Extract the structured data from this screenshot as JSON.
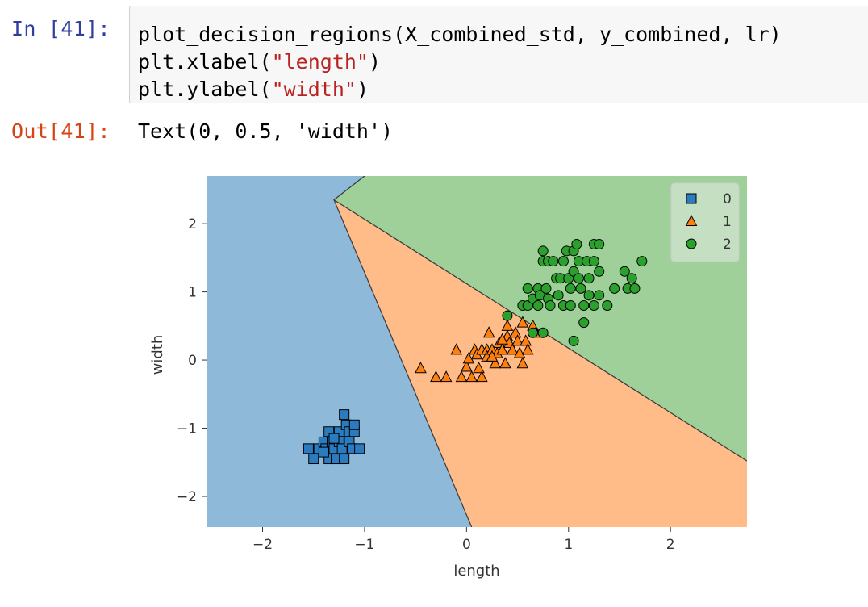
{
  "cell": {
    "in_prompt": "In [41]:",
    "out_prompt": "Out[41]:",
    "code": [
      {
        "pre": "plot_decision_regions(X_combined_std, y_combined, lr)",
        "str": "",
        "post": ""
      },
      {
        "pre": "plt.xlabel(",
        "str": "\"length\"",
        "post": ")"
      },
      {
        "pre": "plt.ylabel(",
        "str": "\"width\"",
        "post": ")"
      }
    ],
    "output_text": "Text(0, 0.5, 'width')"
  },
  "chart_data": {
    "type": "scatter",
    "title": "",
    "xlabel": "length",
    "ylabel": "width",
    "xlim": [
      -2.55,
      2.75
    ],
    "ylim": [
      -2.45,
      2.7
    ],
    "xticks": [
      -2,
      -1,
      0,
      1,
      2
    ],
    "xtick_labels": [
      "−2",
      "−1",
      "0",
      "1",
      "2"
    ],
    "yticks": [
      -2,
      -1,
      0,
      1,
      2
    ],
    "ytick_labels": [
      "−2",
      "−1",
      "0",
      "1",
      "2"
    ],
    "grid": false,
    "legend_position": "top-right",
    "decision_boundaries": {
      "boundary_0_1": [
        [
          -1.0,
          2.7
        ],
        [
          -1.3,
          2.35
        ],
        [
          0.05,
          -2.45
        ]
      ],
      "boundary_1_2": [
        [
          -1.3,
          2.35
        ],
        [
          2.75,
          -1.48
        ]
      ]
    },
    "region_colors": {
      "0": "#8fb9d9",
      "1": "#ffbb88",
      "2": "#9fd09a"
    },
    "series": [
      {
        "name": "0",
        "marker": "square",
        "color": "#2a7bbf",
        "points": [
          [
            -1.55,
            -1.3
          ],
          [
            -1.5,
            -1.45
          ],
          [
            -1.45,
            -1.3
          ],
          [
            -1.4,
            -1.2
          ],
          [
            -1.38,
            -1.3
          ],
          [
            -1.35,
            -1.05
          ],
          [
            -1.35,
            -1.45
          ],
          [
            -1.32,
            -1.2
          ],
          [
            -1.3,
            -1.3
          ],
          [
            -1.28,
            -1.45
          ],
          [
            -1.25,
            -1.05
          ],
          [
            -1.25,
            -1.2
          ],
          [
            -1.22,
            -1.3
          ],
          [
            -1.2,
            -1.45
          ],
          [
            -1.2,
            -0.8
          ],
          [
            -1.18,
            -0.95
          ],
          [
            -1.15,
            -1.05
          ],
          [
            -1.15,
            -1.2
          ],
          [
            -1.12,
            -1.3
          ],
          [
            -1.1,
            -1.05
          ],
          [
            -1.1,
            -0.95
          ],
          [
            -1.05,
            -1.3
          ],
          [
            -1.3,
            -1.15
          ],
          [
            -1.4,
            -1.35
          ]
        ]
      },
      {
        "name": "1",
        "marker": "triangle",
        "color": "#ff7f0e",
        "points": [
          [
            -0.45,
            -0.12
          ],
          [
            -0.3,
            -0.25
          ],
          [
            -0.2,
            -0.25
          ],
          [
            -0.1,
            0.15
          ],
          [
            -0.05,
            -0.25
          ],
          [
            0.0,
            -0.1
          ],
          [
            0.02,
            0.02
          ],
          [
            0.05,
            -0.25
          ],
          [
            0.08,
            0.15
          ],
          [
            0.1,
            0.08
          ],
          [
            0.12,
            -0.12
          ],
          [
            0.15,
            -0.25
          ],
          [
            0.15,
            0.15
          ],
          [
            0.2,
            0.15
          ],
          [
            0.2,
            0.05
          ],
          [
            0.22,
            0.4
          ],
          [
            0.25,
            0.15
          ],
          [
            0.28,
            -0.05
          ],
          [
            0.3,
            0.1
          ],
          [
            0.32,
            0.25
          ],
          [
            0.35,
            0.15
          ],
          [
            0.38,
            -0.05
          ],
          [
            0.4,
            0.5
          ],
          [
            0.4,
            0.35
          ],
          [
            0.42,
            0.25
          ],
          [
            0.45,
            0.15
          ],
          [
            0.48,
            0.4
          ],
          [
            0.5,
            0.28
          ],
          [
            0.52,
            0.1
          ],
          [
            0.55,
            -0.05
          ],
          [
            0.55,
            0.55
          ],
          [
            0.58,
            0.28
          ],
          [
            0.6,
            0.15
          ],
          [
            0.65,
            0.5
          ],
          [
            0.68,
            0.4
          ],
          [
            0.35,
            0.3
          ],
          [
            0.25,
            0.05
          ]
        ]
      },
      {
        "name": "2",
        "marker": "circle",
        "color": "#2ca02c",
        "points": [
          [
            0.4,
            0.65
          ],
          [
            0.55,
            0.8
          ],
          [
            0.6,
            0.8
          ],
          [
            0.6,
            1.05
          ],
          [
            0.65,
            0.9
          ],
          [
            0.65,
            0.4
          ],
          [
            0.7,
            1.05
          ],
          [
            0.7,
            0.8
          ],
          [
            0.72,
            0.95
          ],
          [
            0.75,
            1.6
          ],
          [
            0.75,
            1.45
          ],
          [
            0.75,
            0.4
          ],
          [
            0.78,
            1.05
          ],
          [
            0.8,
            0.9
          ],
          [
            0.8,
            1.45
          ],
          [
            0.82,
            0.8
          ],
          [
            0.85,
            1.45
          ],
          [
            0.88,
            1.2
          ],
          [
            0.9,
            0.95
          ],
          [
            0.92,
            1.2
          ],
          [
            0.95,
            0.8
          ],
          [
            0.95,
            1.45
          ],
          [
            0.98,
            1.6
          ],
          [
            1.0,
            1.2
          ],
          [
            1.02,
            0.8
          ],
          [
            1.02,
            1.05
          ],
          [
            1.05,
            0.28
          ],
          [
            1.05,
            1.3
          ],
          [
            1.05,
            1.6
          ],
          [
            1.08,
            1.7
          ],
          [
            1.1,
            1.45
          ],
          [
            1.1,
            1.2
          ],
          [
            1.12,
            1.05
          ],
          [
            1.15,
            0.8
          ],
          [
            1.15,
            0.55
          ],
          [
            1.18,
            1.45
          ],
          [
            1.2,
            1.2
          ],
          [
            1.2,
            0.95
          ],
          [
            1.25,
            0.8
          ],
          [
            1.25,
            1.45
          ],
          [
            1.25,
            1.7
          ],
          [
            1.3,
            1.7
          ],
          [
            1.3,
            1.3
          ],
          [
            1.3,
            0.95
          ],
          [
            1.38,
            0.8
          ],
          [
            1.45,
            1.05
          ],
          [
            1.55,
            1.3
          ],
          [
            1.58,
            1.05
          ],
          [
            1.62,
            1.2
          ],
          [
            1.65,
            1.05
          ],
          [
            1.72,
            1.45
          ]
        ]
      }
    ]
  }
}
